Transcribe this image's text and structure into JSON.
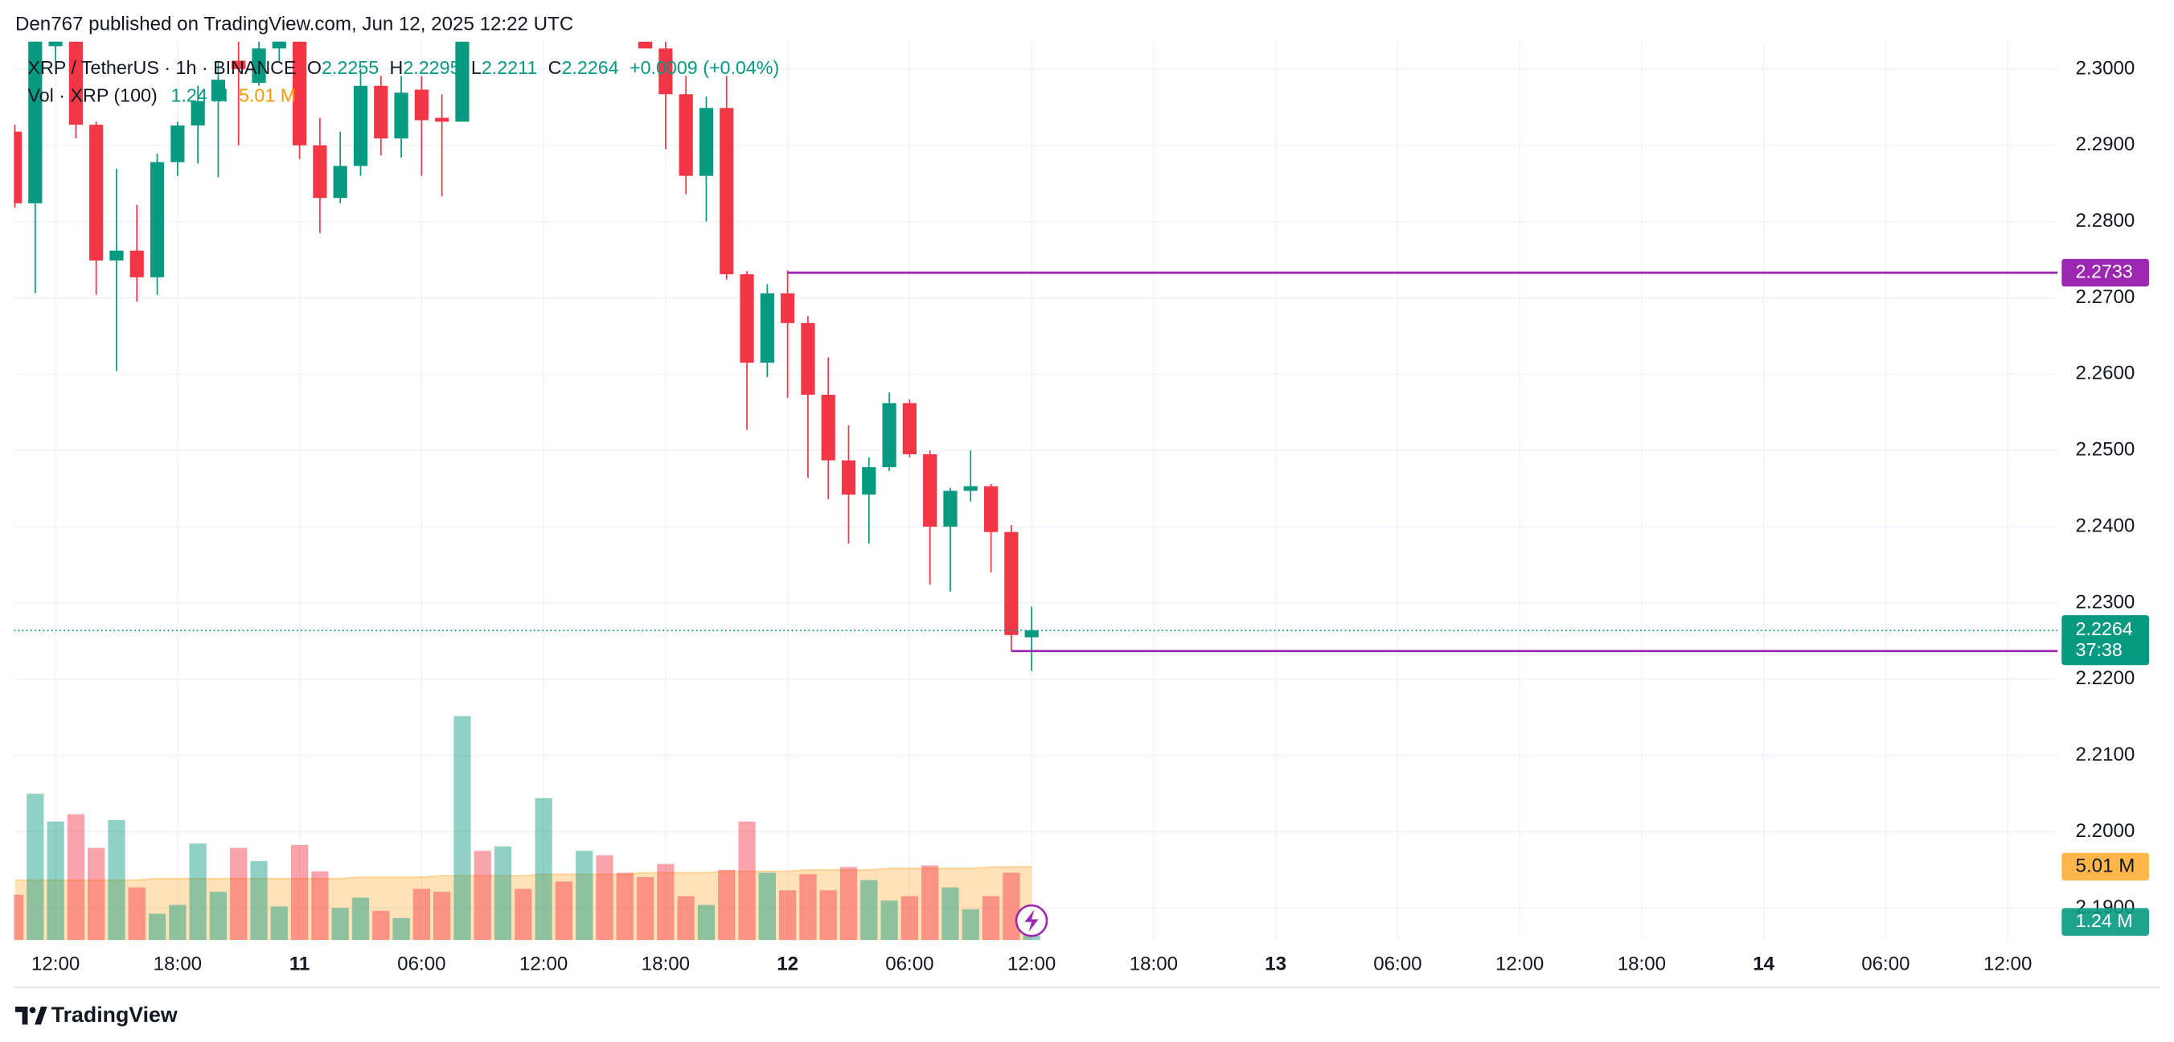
{
  "chart_data": {
    "type": "candlestick",
    "header": "Den767 published on TradingView.com, Jun 12, 2025 12:22 UTC",
    "footer": "TradingView",
    "symbol": "XRP / TetherUS · 1h · BINANCE",
    "legend_keys": [
      "O",
      "H",
      "L",
      "C"
    ],
    "change": "+0.0009 (+0.04%)",
    "volume_title": "Vol · XRP (100)",
    "volume_last_label": "1.24 M",
    "volume_ma_last_label": "5.01 M",
    "countdown": "37:38",
    "up_color": "#089981",
    "down_color": "#f23645",
    "level_color": "#9c27b0",
    "ma_color": "#ff9800",
    "grid": true,
    "x": [
      "2025-06-10T10:00",
      "2025-06-10T11:00",
      "2025-06-10T12:00",
      "2025-06-10T13:00",
      "2025-06-10T14:00",
      "2025-06-10T15:00",
      "2025-06-10T16:00",
      "2025-06-10T17:00",
      "2025-06-10T18:00",
      "2025-06-10T19:00",
      "2025-06-10T20:00",
      "2025-06-10T21:00",
      "2025-06-10T22:00",
      "2025-06-10T23:00",
      "2025-06-11T00:00",
      "2025-06-11T01:00",
      "2025-06-11T02:00",
      "2025-06-11T03:00",
      "2025-06-11T04:00",
      "2025-06-11T05:00",
      "2025-06-11T06:00",
      "2025-06-11T07:00",
      "2025-06-11T08:00",
      "2025-06-11T09:00",
      "2025-06-11T10:00",
      "2025-06-11T11:00",
      "2025-06-11T12:00",
      "2025-06-11T13:00",
      "2025-06-11T14:00",
      "2025-06-11T15:00",
      "2025-06-11T16:00",
      "2025-06-11T17:00",
      "2025-06-11T18:00",
      "2025-06-11T19:00",
      "2025-06-11T20:00",
      "2025-06-11T21:00",
      "2025-06-11T22:00",
      "2025-06-11T23:00",
      "2025-06-12T00:00",
      "2025-06-12T01:00",
      "2025-06-12T02:00",
      "2025-06-12T03:00",
      "2025-06-12T04:00",
      "2025-06-12T05:00",
      "2025-06-12T06:00",
      "2025-06-12T07:00",
      "2025-06-12T08:00",
      "2025-06-12T09:00",
      "2025-06-12T10:00",
      "2025-06-12T11:00",
      "2025-06-12T12:00"
    ],
    "open": [
      2.2918,
      2.2824,
      2.303,
      2.3036,
      2.2927,
      2.2749,
      2.2762,
      2.2727,
      2.2878,
      2.2926,
      2.2958,
      2.3011,
      2.2982,
      2.3027,
      2.3036,
      2.29,
      2.2831,
      2.2873,
      2.2978,
      2.2909,
      2.2973,
      2.2936,
      2.2931,
      null,
      null,
      null,
      null,
      null,
      null,
      null,
      null,
      2.3036,
      2.3027,
      2.2967,
      2.286,
      2.2949,
      2.2731,
      2.2615,
      2.2706,
      2.2667,
      2.2573,
      2.2487,
      2.2442,
      2.2478,
      2.2562,
      2.2495,
      2.24,
      2.2447,
      2.2453,
      2.2393,
      2.2255
    ],
    "high": [
      2.2927,
      2.3073,
      2.308,
      2.306,
      2.2931,
      2.2869,
      2.2822,
      2.2889,
      2.2931,
      2.2978,
      2.3009,
      2.3036,
      2.3036,
      2.3055,
      2.3045,
      2.2936,
      2.2918,
      2.3,
      2.2991,
      2.2991,
      2.2991,
      2.2967,
      2.3045,
      null,
      null,
      null,
      null,
      null,
      null,
      null,
      null,
      2.3045,
      2.3036,
      2.2991,
      2.2964,
      2.2991,
      2.2735,
      2.2718,
      2.2736,
      2.2676,
      2.2622,
      2.2533,
      2.2491,
      2.2576,
      2.2567,
      2.25,
      2.2451,
      2.25,
      2.2456,
      2.2402,
      2.2295
    ],
    "low": [
      2.2818,
      2.2706,
      2.301,
      2.2909,
      2.2704,
      2.2604,
      2.2695,
      2.2704,
      2.286,
      2.2876,
      2.2858,
      2.29,
      2.2978,
      2.3009,
      2.2882,
      2.2785,
      2.2824,
      2.286,
      2.2887,
      2.2884,
      2.286,
      2.2833,
      2.2931,
      null,
      null,
      null,
      null,
      null,
      null,
      null,
      null,
      2.3027,
      2.2895,
      2.2836,
      2.28,
      2.2724,
      2.2527,
      2.2596,
      2.2569,
      2.2464,
      2.2436,
      2.2378,
      2.2378,
      2.2473,
      2.2491,
      2.2324,
      2.2315,
      2.2433,
      2.234,
      2.2237,
      2.2211
    ],
    "close": [
      2.2824,
      2.3055,
      2.306,
      2.2927,
      2.2749,
      2.2762,
      2.2727,
      2.2878,
      2.2926,
      2.2958,
      2.2986,
      2.3,
      2.3027,
      2.304,
      2.29,
      2.2831,
      2.2873,
      2.2978,
      2.2909,
      2.2969,
      2.2933,
      2.2931,
      2.3036,
      null,
      null,
      null,
      null,
      null,
      null,
      null,
      null,
      2.3027,
      2.2967,
      2.286,
      2.2949,
      2.2731,
      2.2615,
      2.2706,
      2.2667,
      2.2573,
      2.2487,
      2.2442,
      2.2478,
      2.2562,
      2.2495,
      2.24,
      2.2447,
      2.2453,
      2.2393,
      2.2258,
      2.2264
    ],
    "volume": [
      3.1,
      10.0,
      8.1,
      8.6,
      6.3,
      8.2,
      3.6,
      1.8,
      2.4,
      6.6,
      3.3,
      6.3,
      5.4,
      2.3,
      6.5,
      4.7,
      2.2,
      2.9,
      2.0,
      1.5,
      3.5,
      3.3,
      15.3,
      6.1,
      6.4,
      3.5,
      9.7,
      4.0,
      6.1,
      5.8,
      4.6,
      4.3,
      5.2,
      3.0,
      2.4,
      4.8,
      8.1,
      4.6,
      3.4,
      4.5,
      3.4,
      5.0,
      4.1,
      2.7,
      3.0,
      5.1,
      3.6,
      2.1,
      3.0,
      4.6,
      1.24
    ],
    "volume_colors": [
      "#f23645",
      "#089981",
      "#089981",
      "#f23645",
      "#f23645",
      "#089981",
      "#f23645",
      "#089981",
      "#089981",
      "#089981",
      "#089981",
      "#f23645",
      "#089981",
      "#089981",
      "#f23645",
      "#f23645",
      "#089981",
      "#089981",
      "#f23645",
      "#089981",
      "#f23645",
      "#f23645",
      "#089981",
      "#f23645",
      "#089981",
      "#f23645",
      "#089981",
      "#f23645",
      "#089981",
      "#f23645",
      "#f23645",
      "#f23645",
      "#f23645",
      "#f23645",
      "#089981",
      "#f23645",
      "#f23645",
      "#089981",
      "#f23645",
      "#f23645",
      "#f23645",
      "#f23645",
      "#089981",
      "#089981",
      "#f23645",
      "#f23645",
      "#089981",
      "#089981",
      "#f23645",
      "#f23645",
      "#089981"
    ],
    "volume_ma": [
      4.1,
      4.1,
      4.1,
      4.1,
      4.1,
      4.1,
      4.1,
      4.2,
      4.2,
      4.2,
      4.2,
      4.2,
      4.2,
      4.2,
      4.2,
      4.2,
      4.2,
      4.3,
      4.3,
      4.3,
      4.3,
      4.4,
      4.4,
      4.4,
      4.4,
      4.4,
      4.5,
      4.5,
      4.5,
      4.5,
      4.5,
      4.6,
      4.6,
      4.6,
      4.6,
      4.7,
      4.7,
      4.7,
      4.7,
      4.8,
      4.8,
      4.8,
      4.8,
      4.9,
      4.9,
      4.9,
      4.9,
      4.9,
      5.0,
      5.0,
      5.01
    ],
    "vlim": [
      0,
      61.4
    ],
    "levels": [
      {
        "price": 2.2733,
        "from": "2025-06-12T00:00"
      },
      {
        "price": 2.2237,
        "from": "2025-06-12T11:00"
      }
    ],
    "ylim": [
      2.1858,
      2.3036
    ],
    "yticks": [
      {
        "value": 2.19,
        "label": "2.1900"
      },
      {
        "value": 2.2,
        "label": "2.2000"
      },
      {
        "value": 2.21,
        "label": "2.2100"
      },
      {
        "value": 2.22,
        "label": "2.2200"
      },
      {
        "value": 2.23,
        "label": "2.2300"
      },
      {
        "value": 2.24,
        "label": "2.2400"
      },
      {
        "value": 2.25,
        "label": "2.2500"
      },
      {
        "value": 2.26,
        "label": "2.2600"
      },
      {
        "value": 2.27,
        "label": "2.2700"
      },
      {
        "value": 2.28,
        "label": "2.2800"
      },
      {
        "value": 2.29,
        "label": "2.2900"
      },
      {
        "value": 2.3,
        "label": "2.3000"
      }
    ],
    "xlim": [
      "2025-06-10T09:57",
      "2025-06-14T14:27"
    ],
    "xticks": [
      {
        "value": "2025-06-10T12:00",
        "label": "12:00"
      },
      {
        "value": "2025-06-10T18:00",
        "label": "18:00"
      },
      {
        "value": "2025-06-11T00:00",
        "label": "11"
      },
      {
        "value": "2025-06-11T06:00",
        "label": "06:00"
      },
      {
        "value": "2025-06-11T12:00",
        "label": "12:00"
      },
      {
        "value": "2025-06-11T18:00",
        "label": "18:00"
      },
      {
        "value": "2025-06-12T00:00",
        "label": "12"
      },
      {
        "value": "2025-06-12T06:00",
        "label": "06:00"
      },
      {
        "value": "2025-06-12T12:00",
        "label": "12:00"
      },
      {
        "value": "2025-06-12T18:00",
        "label": "18:00"
      },
      {
        "value": "2025-06-13T00:00",
        "label": "13"
      },
      {
        "value": "2025-06-13T06:00",
        "label": "06:00"
      },
      {
        "value": "2025-06-13T12:00",
        "label": "12:00"
      },
      {
        "value": "2025-06-13T18:00",
        "label": "18:00"
      },
      {
        "value": "2025-06-14T00:00",
        "label": "14"
      },
      {
        "value": "2025-06-14T06:00",
        "label": "06:00"
      },
      {
        "value": "2025-06-14T12:00",
        "label": "12:00"
      }
    ]
  }
}
